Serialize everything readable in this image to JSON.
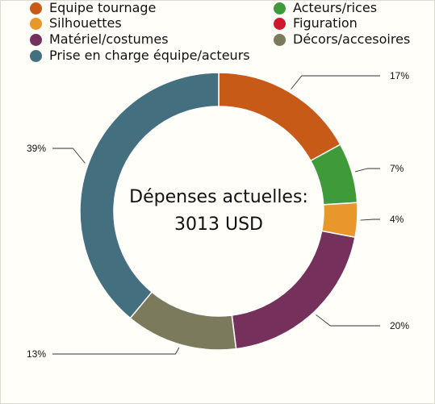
{
  "legend": [
    {
      "label": "Equipe tournage",
      "color": "#c85a17"
    },
    {
      "label": "Acteurs/rices",
      "color": "#3f9a3a"
    },
    {
      "label": "Silhouettes",
      "color": "#e8972a"
    },
    {
      "label": "Figuration",
      "color": "#d1182f"
    },
    {
      "label": "Matériel/costumes",
      "color": "#76305c"
    },
    {
      "label": "Décors/accesoires",
      "color": "#7b7a5c"
    },
    {
      "label": "Prise en charge équipe/acteurs",
      "color": "#446f7f"
    }
  ],
  "center": {
    "line1": "Dépenses actuelles:",
    "line2": "3013 USD"
  },
  "chart_data": {
    "type": "pie",
    "donut": true,
    "categories": [
      "Equipe tournage",
      "Acteurs/rices",
      "Silhouettes",
      "Figuration",
      "Matériel/costumes",
      "Décors/accesoires",
      "Prise en charge équipe/acteurs"
    ],
    "values": [
      17,
      7,
      4,
      0,
      20,
      13,
      39
    ],
    "labels": [
      "17%",
      "7%",
      "4%",
      "",
      "20%",
      "13%",
      "39%"
    ],
    "colors": [
      "#c85a17",
      "#3f9a3a",
      "#e8972a",
      "#d1182f",
      "#76305c",
      "#7b7a5c",
      "#446f7f"
    ],
    "legend_position": "top"
  }
}
